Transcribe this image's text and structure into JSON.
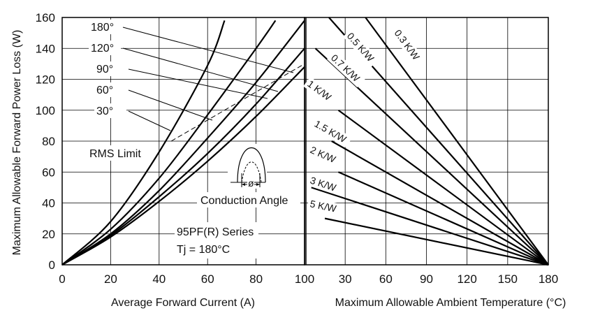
{
  "chart_data": [
    {
      "type": "line",
      "xlabel": "Average Forward Current (A)",
      "ylabel": "Maximum Allowable Forward Power Loss (W)",
      "x_ticks": [
        "0",
        "20",
        "40",
        "60",
        "80",
        "100"
      ],
      "y_ticks": [
        "0",
        "20",
        "40",
        "60",
        "80",
        "100",
        "120",
        "140",
        "160"
      ],
      "xlim": [
        0,
        100
      ],
      "ylim": [
        0,
        160
      ],
      "grid": true,
      "series": [
        {
          "name": "180°",
          "x": [
            0,
            20,
            40,
            60,
            80,
            100
          ],
          "y": [
            0,
            18,
            41,
            67,
            96,
            128
          ]
        },
        {
          "name": "120°",
          "x": [
            0,
            20,
            40,
            60,
            80,
            100
          ],
          "y": [
            0,
            19,
            44,
            72,
            104,
            140
          ]
        },
        {
          "name": "90°",
          "x": [
            0,
            20,
            40,
            60,
            80,
            100
          ],
          "y": [
            0,
            20,
            48,
            82,
            118,
            158
          ]
        },
        {
          "name": "60°",
          "x": [
            0,
            20,
            40,
            60,
            80,
            88
          ],
          "y": [
            0,
            23,
            56,
            97,
            140,
            158
          ]
        },
        {
          "name": "30°",
          "x": [
            0,
            20,
            40,
            60,
            67
          ],
          "y": [
            0,
            28,
            73,
            129,
            158
          ]
        }
      ],
      "rms_limit": {
        "label": "RMS Limit",
        "x": [
          45,
          100
        ],
        "y": [
          80,
          130
        ]
      },
      "annotations": {
        "conduction_angle": "Conduction Angle",
        "phi": "ø",
        "series_name": "95PF(R) Series",
        "tj": "Tj  = 180°C"
      }
    },
    {
      "type": "line",
      "xlabel": "Maximum Allowable Ambient Temperature (°C)",
      "x_ticks": [
        "100",
        "30",
        "60",
        "90",
        "120",
        "150",
        "180"
      ],
      "xlim": [
        0,
        180
      ],
      "ylim": [
        0,
        160
      ],
      "grid": true,
      "convergence_point": {
        "x": 180,
        "y": 0
      },
      "series": [
        {
          "name": "0.3 K/W",
          "x": [
            45,
            180
          ],
          "y": [
            160,
            0
          ]
        },
        {
          "name": "0.5 K/W",
          "x": [
            18,
            180
          ],
          "y": [
            160,
            0
          ]
        },
        {
          "name": "0.7 K/W",
          "x": [
            8,
            180
          ],
          "y": [
            140,
            0
          ]
        },
        {
          "name": "1 K/W",
          "x": [
            25,
            180
          ],
          "y": [
            100,
            0
          ]
        },
        {
          "name": "1.5 K/W",
          "x": [
            20,
            180
          ],
          "y": [
            80,
            0
          ]
        },
        {
          "name": "2 K/W",
          "x": [
            25,
            180
          ],
          "y": [
            60,
            0
          ]
        },
        {
          "name": "3 K/W",
          "x": [
            5,
            180
          ],
          "y": [
            50,
            0
          ]
        },
        {
          "name": "5 K/W",
          "x": [
            15,
            180
          ],
          "y": [
            30,
            0
          ]
        }
      ]
    }
  ]
}
